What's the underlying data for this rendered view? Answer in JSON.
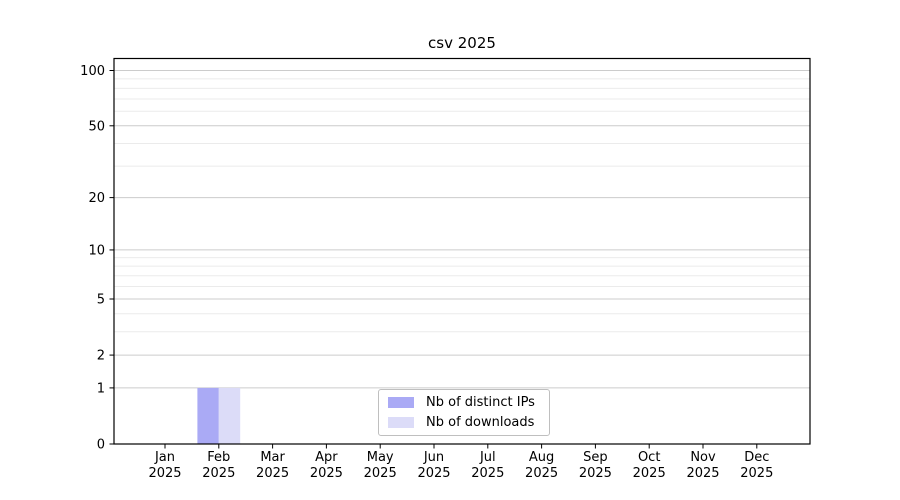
{
  "chart_data": {
    "type": "bar",
    "title": "csv 2025",
    "months": [
      "Jan",
      "Feb",
      "Mar",
      "Apr",
      "May",
      "Jun",
      "Jul",
      "Aug",
      "Sep",
      "Oct",
      "Nov",
      "Dec"
    ],
    "year": "2025",
    "series": [
      {
        "name": "Nb of distinct IPs",
        "color": "#aaaaf5",
        "values": [
          0,
          1,
          0,
          0,
          0,
          0,
          0,
          0,
          0,
          0,
          0,
          0
        ]
      },
      {
        "name": "Nb of downloads",
        "color": "#dcdcf8",
        "values": [
          0,
          1,
          0,
          0,
          0,
          0,
          0,
          0,
          0,
          0,
          0,
          0
        ]
      }
    ],
    "y_scale": "log1p",
    "y_major_ticks": [
      0,
      1,
      2,
      5,
      10,
      20,
      50,
      100
    ],
    "y_minor_gridlines": [
      3,
      4,
      6,
      7,
      8,
      9,
      30,
      40,
      60,
      70,
      80,
      90
    ],
    "ylim": [
      0,
      113
    ],
    "grid": true,
    "legend_position": "lower center",
    "colors": {
      "grid_major": "#cccccc",
      "grid_minor": "#ebebeb",
      "axis": "#000000",
      "text": "#000000",
      "legend_border": "#bfbfbf",
      "legend_bg": "#ffffff"
    }
  }
}
